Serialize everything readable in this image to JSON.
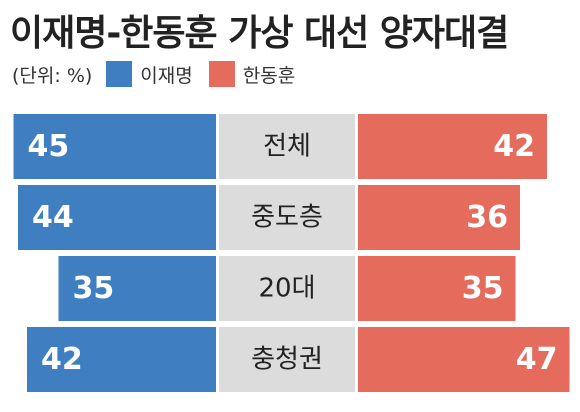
{
  "title": "이재명-한동훈 가상 대선 양자대결",
  "legend": {
    "unit": "(단위: %)",
    "items": [
      {
        "name": "이재명",
        "color": "#3f7fc1"
      },
      {
        "name": "한동훈",
        "color": "#e56b5d"
      }
    ]
  },
  "chart_data": {
    "type": "bar",
    "layout": "butterfly",
    "categories": [
      "전체",
      "중도층",
      "20대",
      "충청권"
    ],
    "series": [
      {
        "name": "이재명",
        "values": [
          45,
          44,
          35,
          42
        ],
        "color": "#3f7fc1"
      },
      {
        "name": "한동훈",
        "values": [
          42,
          36,
          35,
          47
        ],
        "color": "#e56b5d"
      }
    ],
    "unit": "%",
    "label_bg": "#dcdcdc"
  }
}
